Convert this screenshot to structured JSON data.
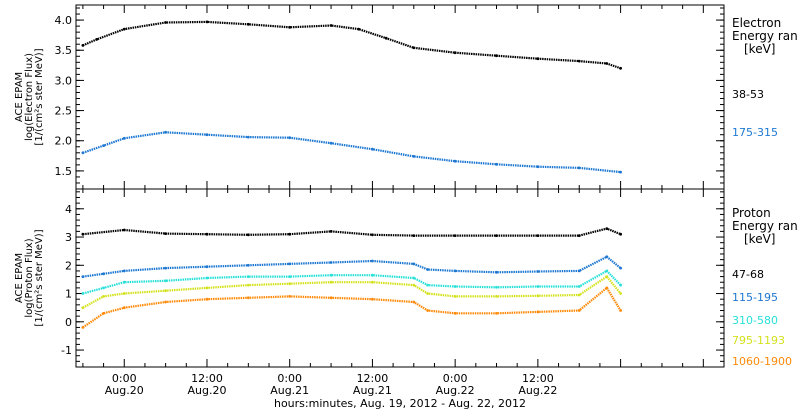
{
  "chart_data": [
    {
      "type": "scatter",
      "ylabel_lines": [
        "ACE EPAM",
        "log(Electron Flux)",
        "[1/(cm²s ster MeV)]"
      ],
      "legend_title": [
        "Electron",
        "Energy ran",
        "[keV]"
      ],
      "ylim": [
        1.2,
        4.25
      ],
      "yticks": [
        1.5,
        2.0,
        2.5,
        3.0,
        3.5,
        4.0
      ],
      "ytick_labels": [
        "1.5",
        "2.0",
        "2.5",
        "3.0",
        "3.5",
        "4.0"
      ],
      "xlim": [
        -7,
        87
      ],
      "series": [
        {
          "name": "38-53",
          "color": "#000000",
          "x": [
            -6,
            -4,
            0,
            6,
            12,
            18,
            24,
            30,
            34,
            38,
            42,
            48,
            54,
            60,
            66,
            70,
            72
          ],
          "y": [
            3.58,
            3.68,
            3.85,
            3.96,
            3.97,
            3.93,
            3.88,
            3.91,
            3.85,
            3.7,
            3.54,
            3.46,
            3.41,
            3.36,
            3.32,
            3.28,
            3.2
          ]
        },
        {
          "name": "175-315",
          "color": "#1e78d2",
          "x": [
            -6,
            -3,
            0,
            6,
            12,
            18,
            24,
            30,
            36,
            42,
            48,
            54,
            60,
            66,
            72
          ],
          "y": [
            1.8,
            1.92,
            2.04,
            2.14,
            2.1,
            2.06,
            2.05,
            1.96,
            1.86,
            1.74,
            1.66,
            1.61,
            1.57,
            1.55,
            1.48
          ]
        }
      ]
    },
    {
      "type": "scatter",
      "ylabel_lines": [
        "ACE EPAM",
        "log(Proton Flux)",
        "[1/(cm²s ster MeV)]"
      ],
      "legend_title": [
        "Proton",
        "Energy ran",
        "[keV]"
      ],
      "ylim": [
        -1.6,
        4.7
      ],
      "yticks": [
        -1,
        0,
        1,
        2,
        3,
        4
      ],
      "ytick_labels": [
        "-1",
        "0",
        "1",
        "2",
        "3",
        "4"
      ],
      "xlim": [
        -7,
        87
      ],
      "xticks": [
        0,
        12,
        24,
        36,
        48,
        60
      ],
      "xtick_labels": [
        [
          "0:00",
          "Aug.20"
        ],
        [
          "12:00",
          "Aug.20"
        ],
        [
          "0:00",
          "Aug.21"
        ],
        [
          "12:00",
          "Aug.21"
        ],
        [
          "0:00",
          "Aug.22"
        ],
        [
          "12:00",
          "Aug.22"
        ]
      ],
      "xlabel": "hours:minutes, Aug. 19, 2012 - Aug. 22, 2012",
      "series": [
        {
          "name": "47-68",
          "color": "#000000",
          "x": [
            -6,
            0,
            6,
            12,
            18,
            24,
            30,
            36,
            42,
            48,
            54,
            60,
            66,
            70,
            72
          ],
          "y": [
            3.1,
            3.25,
            3.12,
            3.1,
            3.08,
            3.1,
            3.2,
            3.08,
            3.05,
            3.05,
            3.05,
            3.05,
            3.05,
            3.3,
            3.1
          ]
        },
        {
          "name": "115-195",
          "color": "#1e78d2",
          "x": [
            -6,
            -3,
            0,
            6,
            12,
            18,
            24,
            30,
            36,
            42,
            44,
            48,
            54,
            60,
            66,
            70,
            72
          ],
          "y": [
            1.6,
            1.7,
            1.8,
            1.9,
            1.95,
            2.0,
            2.05,
            2.1,
            2.15,
            2.05,
            1.85,
            1.8,
            1.75,
            1.78,
            1.8,
            2.3,
            1.9
          ]
        },
        {
          "name": "310-580",
          "color": "#28e0d8",
          "x": [
            -6,
            -3,
            0,
            6,
            12,
            18,
            24,
            30,
            36,
            42,
            44,
            48,
            54,
            60,
            66,
            70,
            72
          ],
          "y": [
            1.0,
            1.2,
            1.4,
            1.45,
            1.55,
            1.6,
            1.6,
            1.65,
            1.65,
            1.55,
            1.3,
            1.25,
            1.22,
            1.25,
            1.25,
            1.8,
            1.3
          ]
        },
        {
          "name": "795-1193",
          "color": "#d4e21e",
          "x": [
            -6,
            -3,
            0,
            6,
            12,
            18,
            24,
            30,
            36,
            42,
            44,
            48,
            54,
            60,
            66,
            70,
            72
          ],
          "y": [
            0.5,
            0.9,
            1.0,
            1.1,
            1.2,
            1.3,
            1.35,
            1.4,
            1.4,
            1.3,
            1.0,
            0.9,
            0.9,
            0.92,
            0.95,
            1.6,
            1.0
          ]
        },
        {
          "name": "1060-1900",
          "color": "#ff8a0a",
          "x": [
            -6,
            -3,
            0,
            6,
            12,
            18,
            24,
            30,
            36,
            42,
            44,
            48,
            54,
            60,
            66,
            70,
            72
          ],
          "y": [
            -0.2,
            0.3,
            0.5,
            0.7,
            0.8,
            0.85,
            0.9,
            0.85,
            0.8,
            0.7,
            0.4,
            0.3,
            0.3,
            0.35,
            0.4,
            1.2,
            0.4
          ]
        }
      ]
    }
  ]
}
